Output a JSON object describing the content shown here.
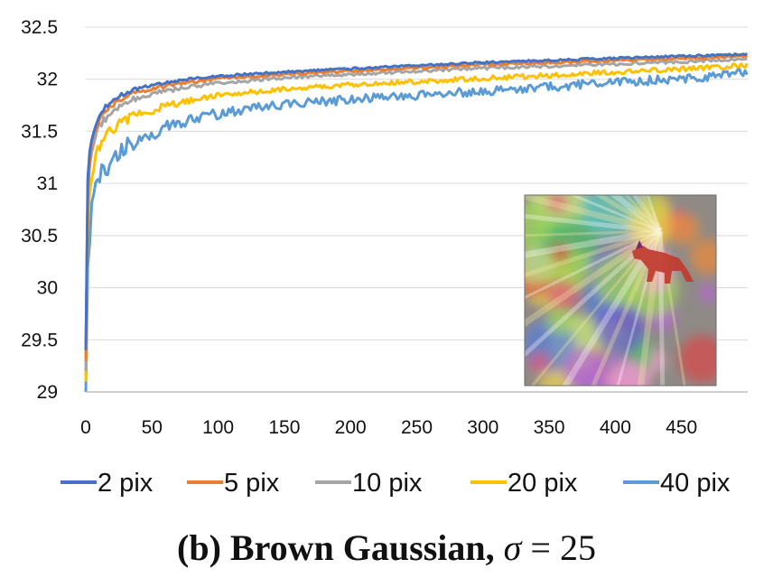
{
  "chart_data": {
    "type": "line",
    "title": "",
    "xlabel": "",
    "ylabel": "",
    "xlim": [
      0,
      500
    ],
    "ylim": [
      29,
      32.5
    ],
    "x_ticks": [
      0,
      50,
      100,
      150,
      200,
      250,
      300,
      350,
      400,
      450
    ],
    "y_ticks": [
      29,
      29.5,
      30,
      30.5,
      31,
      31.5,
      32,
      32.5
    ],
    "x_tick_labels": [
      "0",
      "50",
      "100",
      "150",
      "200",
      "250",
      "300",
      "350",
      "400",
      "450"
    ],
    "y_tick_labels": [
      "29",
      "29.5",
      "30",
      "30.5",
      "31",
      "31.5",
      "32",
      "32.5"
    ],
    "grid": "horizontal",
    "legend_position": "bottom",
    "x": [
      0,
      1,
      2,
      3,
      5,
      8,
      12,
      18,
      25,
      35,
      50,
      75,
      100,
      150,
      200,
      250,
      300,
      350,
      400,
      450,
      480,
      500
    ],
    "series": [
      {
        "name": "2 pix",
        "color": "#4472C4",
        "values": [
          29.4,
          30.9,
          31.2,
          31.35,
          31.5,
          31.62,
          31.72,
          31.8,
          31.86,
          31.91,
          31.96,
          32.01,
          32.04,
          32.08,
          32.11,
          32.14,
          32.17,
          32.19,
          32.21,
          32.23,
          32.24,
          32.25
        ]
      },
      {
        "name": "5 pix",
        "color": "#ED7D31",
        "values": [
          29.3,
          30.8,
          31.1,
          31.28,
          31.45,
          31.58,
          31.68,
          31.76,
          31.82,
          31.88,
          31.93,
          31.98,
          32.02,
          32.06,
          32.09,
          32.12,
          32.15,
          32.17,
          32.19,
          32.21,
          32.22,
          32.23
        ]
      },
      {
        "name": "10 pix",
        "color": "#A5A5A5",
        "values": [
          29.2,
          30.7,
          31.0,
          31.2,
          31.38,
          31.52,
          31.62,
          31.7,
          31.77,
          31.83,
          31.88,
          31.94,
          31.98,
          32.03,
          32.06,
          32.09,
          32.12,
          32.14,
          32.16,
          32.18,
          32.2,
          32.21
        ]
      },
      {
        "name": "20 pix",
        "color": "#FFC000",
        "values": [
          29.1,
          30.4,
          30.75,
          31.0,
          31.2,
          31.35,
          31.47,
          31.55,
          31.62,
          31.68,
          31.74,
          31.82,
          31.87,
          31.93,
          31.97,
          32.0,
          32.03,
          32.06,
          32.09,
          32.12,
          32.14,
          32.16
        ]
      },
      {
        "name": "40 pix",
        "color": "#5B9BD5",
        "values": [
          29.0,
          30.0,
          30.4,
          30.65,
          30.9,
          31.08,
          31.2,
          31.3,
          31.4,
          31.48,
          31.55,
          31.66,
          31.72,
          31.8,
          31.85,
          31.89,
          31.93,
          31.97,
          32.01,
          32.05,
          32.08,
          32.12
        ]
      }
    ]
  },
  "caption": {
    "label": "(b) Brown Gaussian,",
    "sigma": "σ",
    "equals": " = ",
    "value": "25"
  }
}
